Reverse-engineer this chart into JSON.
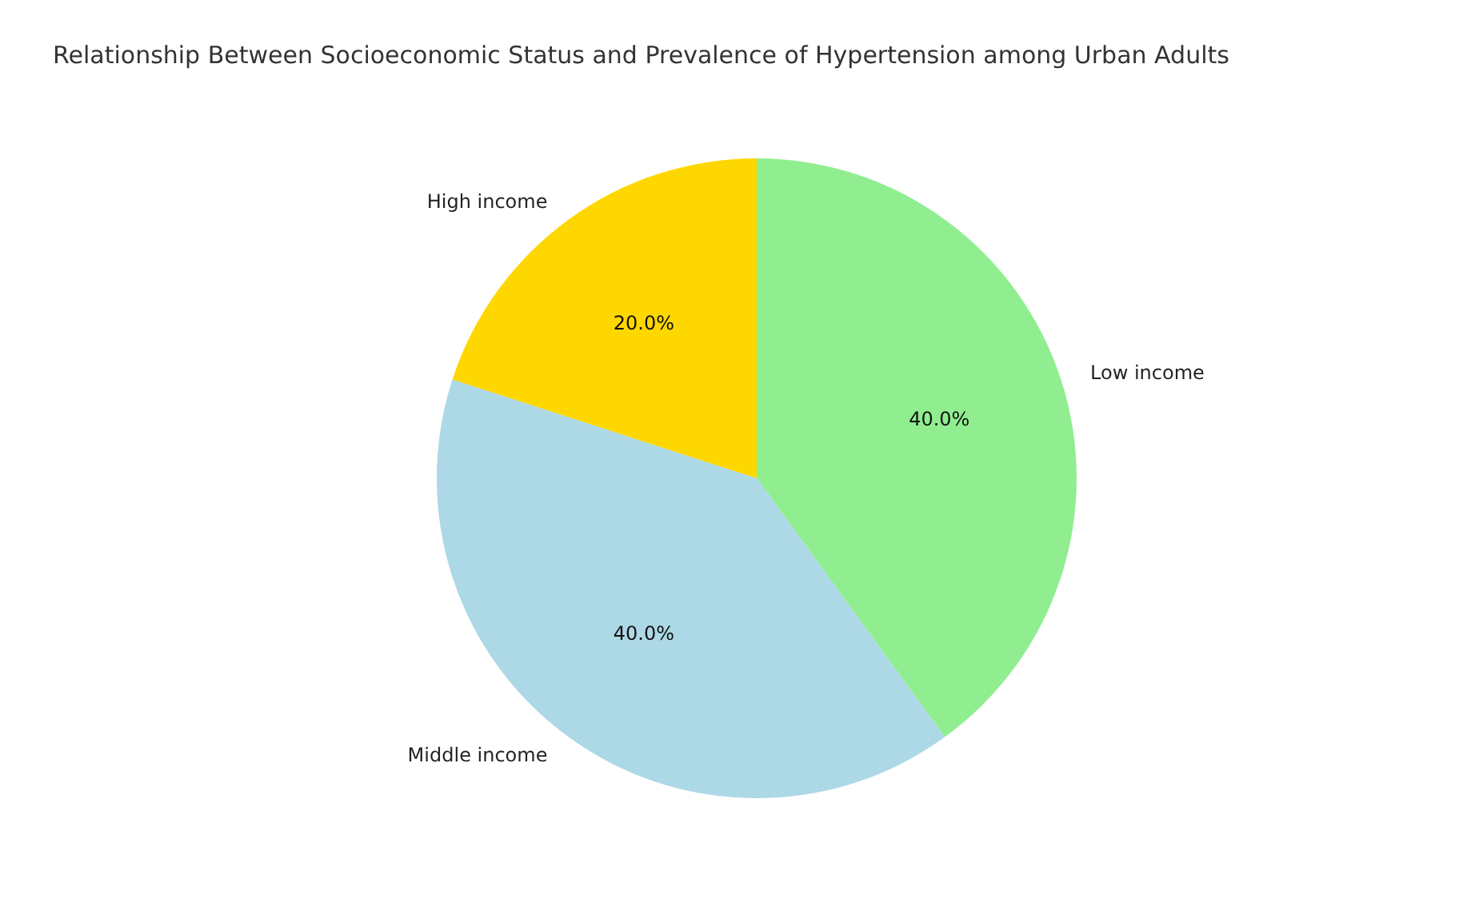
{
  "chart_data": {
    "type": "pie",
    "title": "Relationship Between Socioeconomic Status and Prevalence of Hypertension among Urban Adults",
    "categories": [
      "Low income",
      "Middle income",
      "High income"
    ],
    "values": [
      40,
      40,
      20
    ],
    "colors": [
      "#90ee90",
      "#add8e6",
      "#ffd700"
    ],
    "value_labels": [
      "40.0%",
      "40.0%",
      "20.0%"
    ],
    "legend": false
  }
}
